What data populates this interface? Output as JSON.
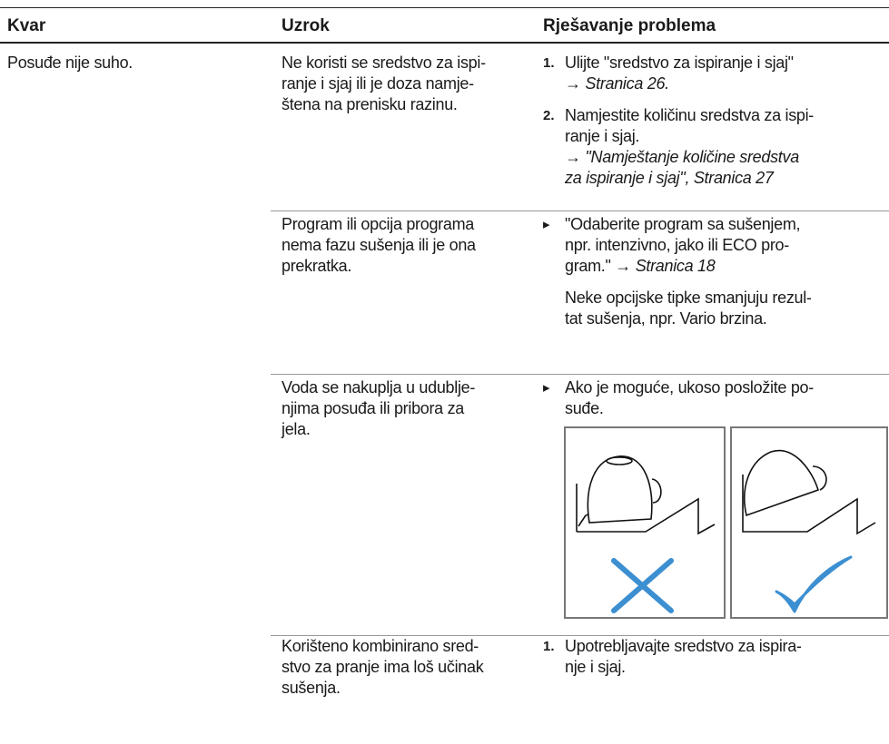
{
  "header": {
    "columns": [
      "Kvar",
      "Uzrok",
      "Rješavanje problema"
    ]
  },
  "rows": [
    {
      "fault": "Posuđe nije suho.",
      "causes": [
        {
          "cause": [
            "Ne koristi se sredstvo za ispi-",
            "ranje i sjaj ili je doza namje-",
            "štena na prenisku razinu."
          ],
          "steps": [
            {
              "marker": "1.",
              "lines": [
                "Ulijte \"sredstvo za ispiranje i sjaj\"",
                {
                  "pre": "→ ",
                  "em": "Stranica 26."
                }
              ]
            },
            {
              "marker": "2.",
              "lines": [
                "Namjestite količinu sredstva za ispi-",
                "ranje i sjaj.",
                {
                  "pre": "→ ",
                  "em": "\"Namještanje količine sredstva"
                },
                {
                  "em": "za ispiranje i sjaj\", Stranica 27"
                }
              ]
            }
          ]
        },
        {
          "cause": [
            "Program ili opcija programa",
            "nema fazu sušenja ili je ona",
            "prekratka."
          ],
          "steps": [
            {
              "marker": "▸",
              "lines": [
                "\"Odaberite program sa sušenjem,",
                "npr. intenzivno, jako ili ECO pro-",
                {
                  "pre": "gram.\" → ",
                  "em": "Stranica 18"
                }
              ]
            }
          ],
          "note": [
            "Neke opcijske tipke smanjuju rezul-",
            "tat sušenja, npr. Vario brzina."
          ]
        },
        {
          "cause": [
            "Voda se nakuplja u udublje-",
            "njima posuđa ili pribora za",
            "jela."
          ],
          "steps": [
            {
              "marker": "▸",
              "lines": [
                "Ako je moguće, ukoso posložite po-",
                "suđe."
              ]
            }
          ]
        },
        {
          "cause": [
            "Korišteno kombinirano sred-",
            "stvo za pranje ima loš učinak",
            "sušenja."
          ],
          "steps": [
            {
              "marker": "1.",
              "lines": [
                "Upotrebljavajte sredstvo za ispira-",
                "nje i sjaj."
              ]
            }
          ]
        }
      ]
    }
  ]
}
